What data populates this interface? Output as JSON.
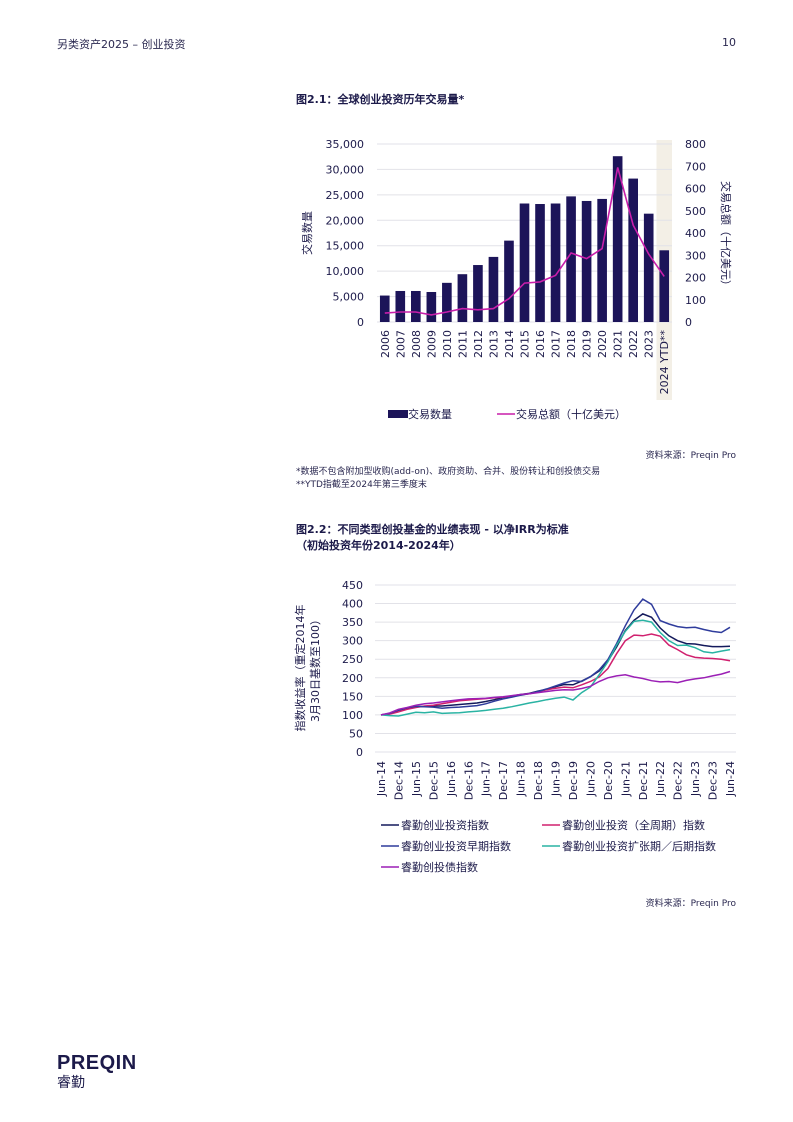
{
  "header": {
    "left": "另类资产2025 – 创业投资",
    "page_number": "10"
  },
  "figure1": {
    "title": "图2.1：全球创业投资历年交易量*",
    "source": "资料来源：Preqin Pro",
    "notes": [
      "*数据不包含附加型收购(add-on)、政府资助、合并、股份转让和创投债交易",
      "**YTD指截至2024年第三季度末"
    ]
  },
  "figure2": {
    "title_line1": "图2.2：不同类型创投基金的业绩表现 - 以净IRR为标准",
    "title_line2": "（初始投资年份2014-2024年）",
    "source": "资料来源：Preqin Pro"
  },
  "logo": {
    "main": "PREQIN",
    "sub": "睿勤"
  },
  "colors": {
    "bar": "#1c1459",
    "line_pink": "#c81eaa",
    "navy": "#141a5c",
    "blue": "#2f3c9c",
    "magenta": "#d0206e",
    "teal": "#2ab3a3",
    "purple": "#9b1fb5",
    "grid": "#e2e2e8",
    "highlight": "#f3efe6"
  },
  "chart_data": [
    {
      "type": "bar",
      "categories": [
        "2006",
        "2007",
        "2008",
        "2009",
        "2010",
        "2011",
        "2012",
        "2013",
        "2014",
        "2015",
        "2016",
        "2017",
        "2018",
        "2019",
        "2020",
        "2021",
        "2022",
        "2023",
        "2024 YTD**"
      ],
      "series": [
        {
          "name": "交易数量",
          "type": "bar",
          "axis": "left",
          "values": [
            5200,
            6100,
            6100,
            5900,
            7700,
            9400,
            11200,
            12800,
            16000,
            23300,
            23200,
            23300,
            24700,
            23800,
            24200,
            32600,
            28200,
            21300,
            14100
          ]
        },
        {
          "name": "交易总额（十亿美元）",
          "type": "line",
          "axis": "right",
          "values": [
            40,
            45,
            45,
            32,
            45,
            60,
            55,
            60,
            105,
            175,
            180,
            210,
            310,
            285,
            330,
            695,
            435,
            305,
            205
          ]
        }
      ],
      "ylabel": "交易数量",
      "y2label": "交易总额（十亿美元）",
      "ylim": [
        0,
        35000
      ],
      "yticks": [
        "0",
        "5,000",
        "10,000",
        "15,000",
        "20,000",
        "25,000",
        "30,000",
        "35,000"
      ],
      "y2lim": [
        0,
        800
      ],
      "y2ticks": [
        "0",
        "100",
        "200",
        "300",
        "400",
        "500",
        "600",
        "700",
        "800"
      ],
      "highlight_category": "2024 YTD**",
      "legend_position": "bottom",
      "grid": true
    },
    {
      "type": "line",
      "x": [
        "Jun-14",
        "Sep-14",
        "Dec-14",
        "Mar-15",
        "Jun-15",
        "Sep-15",
        "Dec-15",
        "Mar-16",
        "Jun-16",
        "Sep-16",
        "Dec-16",
        "Mar-17",
        "Jun-17",
        "Sep-17",
        "Dec-17",
        "Mar-18",
        "Jun-18",
        "Sep-18",
        "Dec-18",
        "Mar-19",
        "Jun-19",
        "Sep-19",
        "Dec-19",
        "Mar-20",
        "Jun-20",
        "Sep-20",
        "Dec-20",
        "Mar-21",
        "Jun-21",
        "Sep-21",
        "Dec-21",
        "Mar-22",
        "Jun-22",
        "Sep-22",
        "Dec-22",
        "Mar-23",
        "Jun-23",
        "Sep-23",
        "Dec-23",
        "Mar-24",
        "Jun-24"
      ],
      "xticks": [
        "Jun-14",
        "Dec-14",
        "Jun-15",
        "Dec-15",
        "Jun-16",
        "Dec-16",
        "Jun-17",
        "Dec-17",
        "Jun-18",
        "Dec-18",
        "Jun-19",
        "Dec-19",
        "Jun-20",
        "Dec-20",
        "Jun-21",
        "Dec-21",
        "Jun-22",
        "Dec-22",
        "Jun-23",
        "Dec-23",
        "Jun-24"
      ],
      "series": [
        {
          "name": "睿勤创业投资指数",
          "color_key": "navy",
          "values": [
            100,
            103,
            112,
            118,
            122,
            123,
            124,
            124,
            126,
            128,
            130,
            132,
            136,
            141,
            147,
            151,
            155,
            158,
            164,
            169,
            176,
            182,
            181,
            191,
            203,
            218,
            245,
            283,
            327,
            355,
            372,
            363,
            334,
            313,
            300,
            292,
            291,
            287,
            284,
            284,
            285
          ]
        },
        {
          "name": "睿勤创业投资（全周期）指数",
          "color_key": "magenta",
          "values": [
            100,
            102,
            108,
            115,
            120,
            124,
            126,
            130,
            134,
            138,
            140,
            142,
            144,
            146,
            148,
            151,
            154,
            157,
            162,
            168,
            172,
            175,
            173,
            181,
            190,
            202,
            225,
            265,
            300,
            315,
            313,
            318,
            312,
            288,
            276,
            262,
            255,
            253,
            252,
            250,
            246
          ]
        },
        {
          "name": "睿勤创业投资早期指数",
          "color_key": "blue",
          "values": [
            100,
            104,
            113,
            119,
            123,
            122,
            121,
            118,
            120,
            121,
            123,
            125,
            130,
            137,
            143,
            148,
            153,
            157,
            163,
            170,
            178,
            186,
            192,
            190,
            203,
            221,
            249,
            292,
            340,
            383,
            412,
            398,
            354,
            345,
            338,
            335,
            336,
            330,
            325,
            322,
            336
          ]
        },
        {
          "name": "睿勤创业投资扩张期／后期指数",
          "color_key": "teal",
          "values": [
            100,
            98,
            97,
            102,
            107,
            106,
            108,
            104,
            105,
            106,
            108,
            110,
            112,
            115,
            118,
            122,
            127,
            132,
            136,
            141,
            145,
            148,
            140,
            160,
            175,
            208,
            243,
            288,
            325,
            352,
            355,
            350,
            322,
            300,
            287,
            288,
            281,
            270,
            267,
            272,
            276
          ]
        },
        {
          "name": "睿勤创投债指数",
          "color_key": "purple",
          "values": [
            100,
            105,
            115,
            120,
            126,
            130,
            132,
            135,
            138,
            141,
            143,
            144,
            145,
            147,
            149,
            152,
            155,
            157,
            160,
            163,
            166,
            168,
            167,
            171,
            177,
            190,
            200,
            205,
            208,
            202,
            198,
            192,
            189,
            190,
            187,
            193,
            197,
            200,
            205,
            210,
            217
          ]
        }
      ],
      "ylabel": "指数收益率（重定2014年3月30日基数至100）",
      "ylim": [
        0,
        450
      ],
      "yticks": [
        "0",
        "50",
        "100",
        "150",
        "200",
        "250",
        "300",
        "350",
        "400",
        "450"
      ],
      "legend_position": "bottom",
      "grid": true
    }
  ]
}
